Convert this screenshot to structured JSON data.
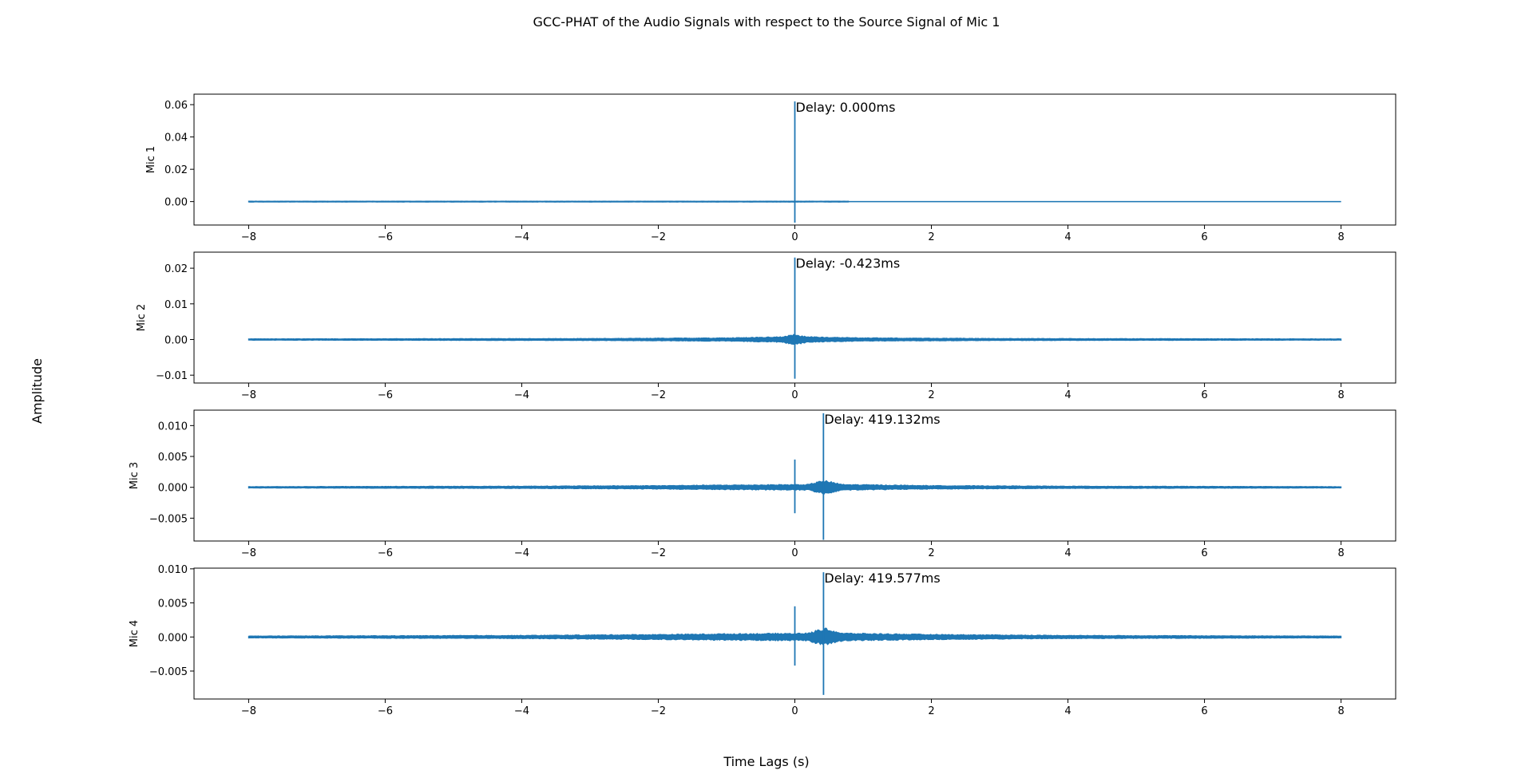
{
  "figure": {
    "title": "GCC-PHAT of the Audio Signals with respect to the Source Signal of Mic 1",
    "xlabel": "Time Lags (s)",
    "ylabel": "Amplitude"
  },
  "colors": {
    "line": "#1f77b4",
    "axes": "#000000",
    "background": "#ffffff"
  },
  "chart_data": [
    {
      "type": "line",
      "ylabel": "Mic 1",
      "xlim": [
        -8.8,
        8.8
      ],
      "ylim": [
        -0.0145,
        0.0665
      ],
      "xticks": [
        -8,
        -6,
        -4,
        -2,
        0,
        2,
        4,
        6,
        8
      ],
      "yticks": [
        0.0,
        0.02,
        0.04,
        0.06
      ],
      "ytick_labels": [
        "0.00",
        "0.02",
        "0.04",
        "0.06"
      ],
      "grid": false,
      "annotation": "Delay: 0.000ms",
      "signal": {
        "x_range": [
          -8,
          8
        ],
        "baseline": 0.0,
        "noise_envelope": [
          [
            -0.8,
            0.0003
          ],
          [
            0.8,
            0.0003
          ]
        ],
        "spikes": [
          {
            "x": 0.0,
            "max": 0.062,
            "min": -0.013
          }
        ]
      }
    },
    {
      "type": "line",
      "ylabel": "Mic 2",
      "xlim": [
        -8.8,
        8.8
      ],
      "ylim": [
        -0.0122,
        0.0245
      ],
      "xticks": [
        -8,
        -6,
        -4,
        -2,
        0,
        2,
        4,
        6,
        8
      ],
      "yticks": [
        -0.01,
        0.0,
        0.01,
        0.02
      ],
      "ytick_labels": [
        "−0.01",
        "0.00",
        "0.01",
        "0.02"
      ],
      "grid": false,
      "annotation": "Delay: -0.423ms",
      "signal": {
        "x_range": [
          -8,
          8
        ],
        "baseline": 0.0,
        "noise_envelope": [
          [
            -8,
            0.0002
          ],
          [
            -3,
            0.0003
          ],
          [
            -1,
            0.0005
          ],
          [
            -0.2,
            0.0008
          ],
          [
            0,
            0.0015
          ],
          [
            0.2,
            0.0008
          ],
          [
            1,
            0.0005
          ],
          [
            3,
            0.0003
          ],
          [
            8,
            0.0002
          ]
        ],
        "spikes": [
          {
            "x": 0.0,
            "max": 0.023,
            "min": -0.011
          }
        ]
      }
    },
    {
      "type": "line",
      "ylabel": "Mic 3",
      "xlim": [
        -8.8,
        8.8
      ],
      "ylim": [
        -0.0087,
        0.0125
      ],
      "xticks": [
        -8,
        -6,
        -4,
        -2,
        0,
        2,
        4,
        6,
        8
      ],
      "yticks": [
        -0.005,
        0.0,
        0.005,
        0.01
      ],
      "ytick_labels": [
        "−0.005",
        "0.000",
        "0.005",
        "0.010"
      ],
      "grid": false,
      "annotation": "Delay: 419.132ms",
      "signal": {
        "x_range": [
          -8,
          8
        ],
        "baseline": 0.0,
        "noise_envelope": [
          [
            -8,
            0.00012
          ],
          [
            -4,
            0.0002
          ],
          [
            -2,
            0.0003
          ],
          [
            -1,
            0.0004
          ],
          [
            0.2,
            0.0005
          ],
          [
            0.42,
            0.0012
          ],
          [
            0.7,
            0.0005
          ],
          [
            2,
            0.0003
          ],
          [
            4,
            0.0002
          ],
          [
            8,
            0.00012
          ]
        ],
        "spikes": [
          {
            "x": 0.0,
            "max": 0.0045,
            "min": -0.0042
          },
          {
            "x": 0.419,
            "max": 0.012,
            "min": -0.0085
          }
        ]
      }
    },
    {
      "type": "line",
      "ylabel": "Mic 4",
      "xlim": [
        -8.8,
        8.8
      ],
      "ylim": [
        -0.0091,
        0.0101
      ],
      "xticks": [
        -8,
        -6,
        -4,
        -2,
        0,
        2,
        4,
        6,
        8
      ],
      "yticks": [
        -0.005,
        0.0,
        0.005,
        0.01
      ],
      "ytick_labels": [
        "−0.005",
        "0.000",
        "0.005",
        "0.010"
      ],
      "grid": false,
      "annotation": "Delay: 419.577ms",
      "signal": {
        "x_range": [
          -8,
          8
        ],
        "baseline": 0.0,
        "noise_envelope": [
          [
            -8,
            0.00015
          ],
          [
            -4,
            0.00025
          ],
          [
            -2,
            0.0004
          ],
          [
            -1,
            0.0005
          ],
          [
            0.2,
            0.0006
          ],
          [
            0.42,
            0.0014
          ],
          [
            0.7,
            0.0006
          ],
          [
            2,
            0.0004
          ],
          [
            4,
            0.00025
          ],
          [
            8,
            0.00015
          ]
        ],
        "spikes": [
          {
            "x": 0.0,
            "max": 0.0045,
            "min": -0.0042
          },
          {
            "x": 0.42,
            "max": 0.0095,
            "min": -0.0085
          }
        ]
      }
    }
  ]
}
